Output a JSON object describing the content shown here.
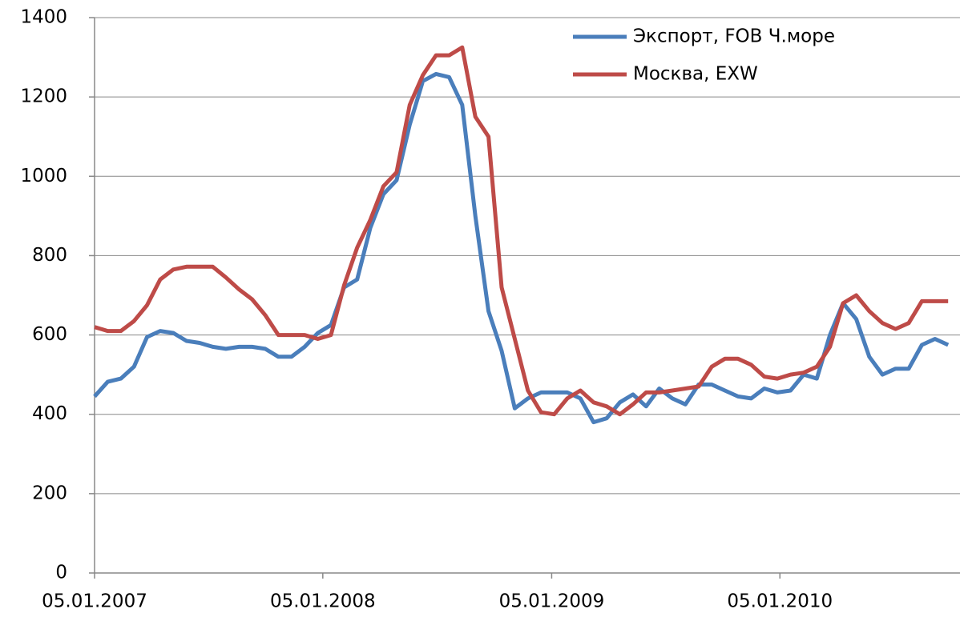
{
  "chart_data": {
    "type": "line",
    "x": [
      "05.01.2007",
      "26.01.2007",
      "16.02.2007",
      "09.03.2007",
      "30.03.2007",
      "20.04.2007",
      "11.05.2007",
      "01.06.2007",
      "22.06.2007",
      "13.07.2007",
      "03.08.2007",
      "24.08.2007",
      "14.09.2007",
      "05.10.2007",
      "26.10.2007",
      "16.11.2007",
      "07.12.2007",
      "28.12.2007",
      "18.01.2008",
      "08.02.2008",
      "29.02.2008",
      "21.03.2008",
      "11.04.2008",
      "02.05.2008",
      "23.05.2008",
      "13.06.2008",
      "04.07.2008",
      "25.07.2008",
      "15.08.2008",
      "05.09.2008",
      "26.09.2008",
      "17.10.2008",
      "07.11.2008",
      "28.11.2008",
      "19.12.2008",
      "09.01.2009",
      "30.01.2009",
      "20.02.2009",
      "13.03.2009",
      "03.04.2009",
      "24.04.2009",
      "15.05.2009",
      "05.06.2009",
      "26.06.2009",
      "17.07.2009",
      "07.08.2009",
      "28.08.2009",
      "18.09.2009",
      "09.10.2009",
      "30.10.2009",
      "20.11.2009",
      "11.12.2009",
      "01.01.2010",
      "22.01.2010",
      "12.02.2010",
      "05.03.2010",
      "26.03.2010",
      "16.04.2010",
      "07.05.2010",
      "28.05.2010",
      "18.06.2010",
      "09.07.2010",
      "30.07.2010",
      "20.08.2010",
      "10.09.2010",
      "01.10.2010"
    ],
    "series": [
      {
        "name": "Экспорт, FOB Ч.море",
        "color": "#4a7ebb",
        "values": [
          445,
          482,
          490,
          520,
          595,
          610,
          605,
          585,
          580,
          570,
          565,
          570,
          570,
          565,
          545,
          545,
          570,
          605,
          625,
          720,
          740,
          870,
          955,
          990,
          1130,
          1240,
          1258,
          1250,
          1180,
          900,
          660,
          560,
          415,
          440,
          455,
          455,
          455,
          440,
          380,
          390,
          430,
          450,
          420,
          465,
          440,
          425,
          475,
          475,
          460,
          445,
          440,
          465,
          455,
          460,
          500,
          490,
          600,
          680,
          640,
          545,
          500,
          515,
          515,
          575,
          590,
          575
        ]
      },
      {
        "name": "Москва, EXW",
        "color": "#be4b48",
        "values": [
          620,
          610,
          610,
          635,
          675,
          740,
          765,
          772,
          772,
          772,
          745,
          715,
          690,
          650,
          600,
          600,
          600,
          590,
          600,
          725,
          820,
          890,
          975,
          1010,
          1180,
          1255,
          1305,
          1305,
          1325,
          1150,
          1100,
          720,
          590,
          460,
          405,
          400,
          440,
          460,
          430,
          420,
          400,
          425,
          455,
          455,
          460,
          465,
          470,
          520,
          540,
          540,
          525,
          495,
          490,
          500,
          505,
          520,
          570,
          680,
          700,
          660,
          630,
          615,
          630,
          685,
          685,
          685
        ]
      }
    ],
    "xlim": [
      "05.01.2007",
      "20.10.2010"
    ],
    "xticks": [
      "05.01.2007",
      "05.01.2008",
      "05.01.2009",
      "05.01.2010"
    ],
    "ylim": [
      0,
      1400
    ],
    "yticks": [
      0,
      200,
      400,
      600,
      800,
      1000,
      1200,
      1400
    ],
    "grid": true,
    "legend": "top-right"
  }
}
